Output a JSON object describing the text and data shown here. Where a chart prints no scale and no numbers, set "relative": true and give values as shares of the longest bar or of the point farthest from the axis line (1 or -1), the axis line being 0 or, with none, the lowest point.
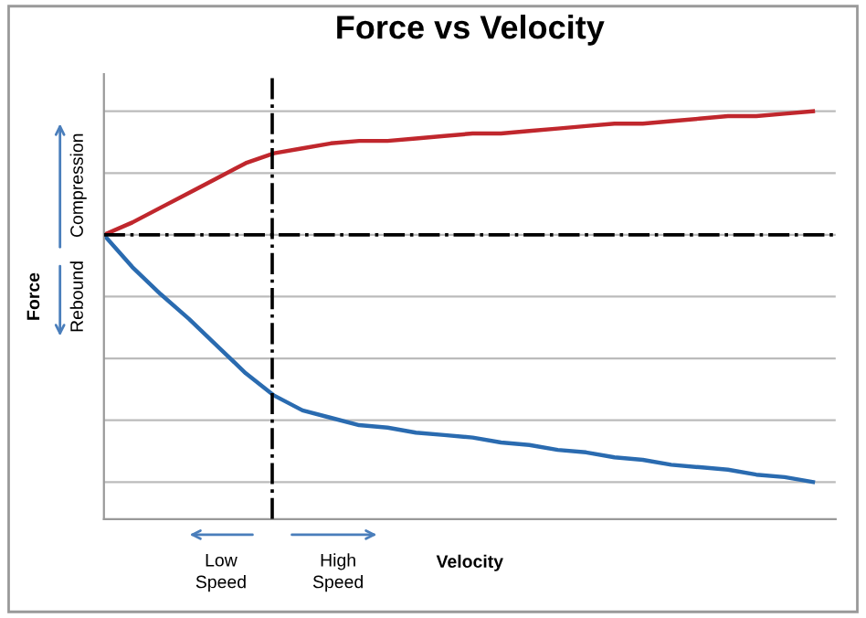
{
  "chart_data": {
    "type": "line",
    "title": "Force vs Velocity",
    "xlabel": "Velocity",
    "ylabel": "Force",
    "relative": true,
    "grid": "y",
    "tick_labels": false,
    "legend": false,
    "marker": "none",
    "line_style": "solid",
    "categories": [
      null,
      null,
      null,
      null,
      null,
      null,
      null,
      null,
      null,
      null,
      null,
      null,
      null,
      null,
      null,
      null,
      null,
      null,
      null,
      null,
      null,
      null,
      null,
      null,
      null,
      null
    ],
    "series": [
      {
        "color": "#c0272d",
        "values": [
          0,
          0.05,
          0.11,
          0.17,
          0.23,
          0.29,
          0.33,
          0.35,
          0.37,
          0.38,
          0.38,
          0.39,
          0.4,
          0.41,
          0.41,
          0.42,
          0.43,
          0.44,
          0.45,
          0.45,
          0.46,
          0.47,
          0.48,
          0.48,
          0.49,
          0.5
        ]
      },
      {
        "color": "#2a6bb0",
        "values": [
          0,
          -0.13,
          -0.24,
          -0.34,
          -0.45,
          -0.56,
          -0.65,
          -0.71,
          -0.74,
          -0.77,
          -0.78,
          -0.8,
          -0.81,
          -0.82,
          -0.84,
          -0.85,
          -0.87,
          -0.88,
          -0.9,
          -0.91,
          -0.93,
          -0.94,
          -0.95,
          -0.97,
          -0.98,
          -1
        ]
      }
    ],
    "ref_lines": [
      {
        "axis": "y",
        "value": 0,
        "color": "#000000",
        "line_style": "dashdot"
      }
    ],
    "annotations": [
      "Compression",
      "Rebound",
      "Low\nSpeed",
      "High\nSpeed"
    ]
  }
}
